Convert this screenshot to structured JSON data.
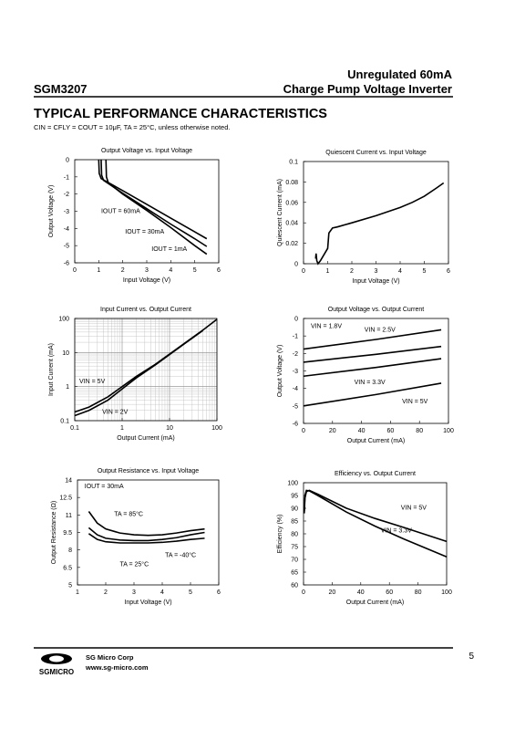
{
  "header": {
    "part": "SGM3207",
    "title_line1": "Unregulated 60mA",
    "title_line2": "Charge Pump Voltage Inverter"
  },
  "section_title": "TYPICAL PERFORMANCE CHARACTERISTICS",
  "conditions": "CIN = CFLY = COUT = 10μF, TA = 25°C, unless otherwise noted.",
  "chart_data": [
    {
      "type": "line",
      "title": "Output Voltage  vs. Input Voltage",
      "xlabel": "Input Voltage (V)",
      "ylabel": "Output Voltage (V)",
      "xlim": [
        0,
        6
      ],
      "ylim": [
        -6,
        0
      ],
      "xticks": [
        0,
        1,
        2,
        3,
        4,
        5,
        6
      ],
      "yticks": [
        0,
        -1,
        -2,
        -3,
        -4,
        -5,
        -6
      ],
      "color": "#000000",
      "series": [
        {
          "name": "IOUT = 60mA",
          "x": [
            1.0,
            1.02,
            1.1,
            2,
            3,
            4,
            5,
            5.5
          ],
          "values": [
            0,
            -0.8,
            -1.1,
            -1.8,
            -2.6,
            -3.4,
            -4.2,
            -4.6
          ]
        },
        {
          "name": "IOUT = 30mA",
          "x": [
            1.1,
            1.12,
            1.2,
            2,
            3,
            4,
            5,
            5.5
          ],
          "values": [
            0,
            -0.9,
            -1.2,
            -1.95,
            -2.85,
            -3.75,
            -4.6,
            -5.05
          ]
        },
        {
          "name": "IOUT = 1mA",
          "x": [
            1.3,
            1.32,
            1.4,
            2,
            3,
            4,
            5,
            5.5
          ],
          "values": [
            0,
            -1.0,
            -1.35,
            -2.0,
            -2.95,
            -3.95,
            -5.0,
            -5.5
          ]
        }
      ]
    },
    {
      "type": "line",
      "title": "Quiescent Current  vs. Input Voltage",
      "xlabel": "Input Voltage (V)",
      "ylabel": "Quiescent Current (mA)",
      "xlim": [
        0,
        6
      ],
      "ylim": [
        0,
        0.1
      ],
      "xticks": [
        0,
        1,
        2,
        3,
        4,
        5,
        6
      ],
      "yticks": [
        0,
        0.02,
        0.04,
        0.06,
        0.08,
        0.1
      ],
      "color": "#000000",
      "series": [
        {
          "x": [
            0.5,
            0.52,
            0.55,
            0.6,
            0.7,
            1.0,
            1.05,
            1.2,
            1.4,
            2,
            3,
            4,
            4.5,
            5,
            5.5,
            5.8
          ],
          "values": [
            0.005,
            0.01,
            0.003,
            0,
            0.003,
            0.015,
            0.03,
            0.035,
            0.036,
            0.04,
            0.047,
            0.055,
            0.06,
            0.066,
            0.074,
            0.079
          ]
        }
      ]
    },
    {
      "type": "line",
      "title": "Input Current  vs. Output Current",
      "xlabel": "Output Current (mA)",
      "ylabel": "Input Current (mA)",
      "log": true,
      "grid": true,
      "xlim": [
        0.1,
        100
      ],
      "ylim": [
        0.1,
        100
      ],
      "xticks": [
        0.1,
        1,
        10,
        100
      ],
      "yticks": [
        0.1,
        1,
        10,
        100
      ],
      "color": "#000000",
      "series": [
        {
          "name": "VIN = 5V",
          "x": [
            0.1,
            0.2,
            0.5,
            1,
            2,
            5,
            10,
            20,
            50,
            100
          ],
          "values": [
            0.18,
            0.25,
            0.5,
            1.0,
            2,
            4.5,
            9,
            18,
            45,
            95
          ]
        },
        {
          "name": "VIN = 2V",
          "x": [
            0.1,
            0.2,
            0.5,
            1,
            2,
            5,
            10,
            20,
            50
          ],
          "values": [
            0.14,
            0.2,
            0.4,
            0.85,
            1.8,
            4.3,
            8.7,
            17.5,
            44
          ]
        }
      ]
    },
    {
      "type": "line",
      "title": "Output Voltage  vs. Output Current",
      "xlabel": "Output Current (mA)",
      "ylabel": "Output Voltage (V)",
      "xlim": [
        0,
        100
      ],
      "ylim": [
        -6,
        0
      ],
      "xticks": [
        0,
        20,
        40,
        60,
        80,
        100
      ],
      "yticks": [
        0,
        -1,
        -2,
        -3,
        -4,
        -5,
        -6
      ],
      "color": "#000000",
      "series": [
        {
          "name": "VIN = 1.8V",
          "x": [
            0,
            50,
            95
          ],
          "values": [
            -1.75,
            -1.2,
            -0.65
          ]
        },
        {
          "name": "VIN = 2.5V",
          "x": [
            0,
            50,
            95
          ],
          "values": [
            -2.5,
            -2.05,
            -1.6
          ]
        },
        {
          "name": "VIN = 3.3V",
          "x": [
            0,
            50,
            95
          ],
          "values": [
            -3.3,
            -2.8,
            -2.3
          ]
        },
        {
          "name": "VIN = 5V",
          "x": [
            0,
            50,
            95
          ],
          "values": [
            -5.0,
            -4.35,
            -3.7
          ]
        }
      ]
    },
    {
      "type": "line",
      "title": "Output Resistance vs. Input Voltage",
      "xlabel": "Input Voltage (V)",
      "ylabel": "Output Resistance (Ω)",
      "xlim": [
        1,
        6
      ],
      "ylim": [
        5,
        14
      ],
      "xticks": [
        1,
        2,
        3,
        4,
        5,
        6
      ],
      "yticks": [
        5,
        6.5,
        8,
        9.5,
        11,
        12.5,
        14
      ],
      "color": "#000000",
      "annotations": [
        "IOUT = 30mA"
      ],
      "series": [
        {
          "name": "TA = 85°C",
          "x": [
            1.4,
            1.7,
            2,
            2.5,
            3,
            3.5,
            4,
            4.5,
            5,
            5.5
          ],
          "values": [
            11.3,
            10.3,
            9.8,
            9.45,
            9.3,
            9.25,
            9.3,
            9.45,
            9.65,
            9.8
          ]
        },
        {
          "name": "TA = 25°C",
          "x": [
            1.4,
            1.7,
            2,
            2.5,
            3,
            3.5,
            4,
            4.5,
            5,
            5.5
          ],
          "values": [
            9.9,
            9.3,
            9.0,
            8.85,
            8.8,
            8.8,
            8.9,
            9.05,
            9.3,
            9.5
          ]
        },
        {
          "name": "TA = -40°C",
          "x": [
            1.4,
            1.7,
            2,
            2.5,
            3,
            3.5,
            4,
            4.5,
            5,
            5.5
          ],
          "values": [
            9.4,
            8.9,
            8.7,
            8.6,
            8.6,
            8.6,
            8.65,
            8.75,
            8.9,
            9.0
          ]
        }
      ]
    },
    {
      "type": "line",
      "title": "Efficiency vs. Output Current",
      "xlabel": "Output Current (mA)",
      "ylabel": "Efficiency (%)",
      "xlim": [
        0,
        100
      ],
      "ylim": [
        60,
        100
      ],
      "xticks": [
        0,
        20,
        40,
        60,
        80,
        100
      ],
      "yticks": [
        60,
        65,
        70,
        75,
        80,
        85,
        90,
        95,
        100
      ],
      "color": "#000000",
      "series": [
        {
          "name": "VIN = 5V",
          "x": [
            0.5,
            1,
            2,
            4,
            10,
            30,
            50,
            70,
            100
          ],
          "values": [
            88,
            94,
            96.5,
            97,
            95.5,
            90,
            86,
            82.5,
            77
          ]
        },
        {
          "name": "VIN = 3.3V",
          "x": [
            0.5,
            1,
            2,
            4,
            10,
            30,
            50,
            70,
            100
          ],
          "values": [
            89,
            95,
            97,
            96.8,
            95,
            88.5,
            83,
            78,
            71
          ]
        }
      ]
    }
  ],
  "footer": {
    "company": "SG Micro Corp",
    "website": "www.sg-micro.com",
    "logo": "SGMICRO",
    "page": "5"
  }
}
